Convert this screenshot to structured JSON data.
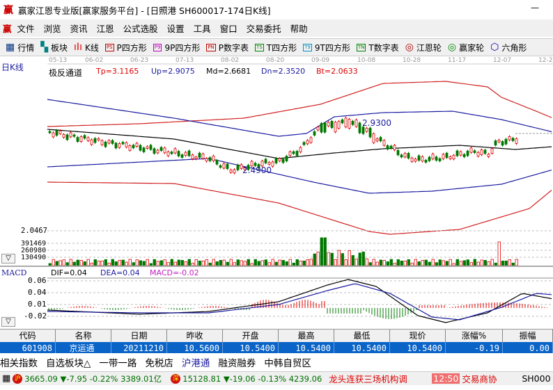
{
  "window": {
    "title": "赢家江恩专业版[赢家服务平台] - [日照港  SH600017-174日K线]",
    "logo": "赢",
    "minimize": "—"
  },
  "menu": [
    "文件",
    "浏览",
    "资讯",
    "江恩",
    "公式选股",
    "设置",
    "工具",
    "窗口",
    "交易委托",
    "帮助"
  ],
  "toolbar": [
    {
      "icon": "grid-icon",
      "label": "行情"
    },
    {
      "icon": "blocks-icon",
      "label": "板块"
    },
    {
      "icon": "candles-icon",
      "label": "K线"
    },
    {
      "icon": "PS",
      "label": "P四方形",
      "color": "#c00000"
    },
    {
      "icon": "P9",
      "label": "9P四方形",
      "color": "#c000c0"
    },
    {
      "icon": "PN",
      "label": "P数字表",
      "color": "#c00000"
    },
    {
      "icon": "TS",
      "label": "T四方形",
      "color": "#008000"
    },
    {
      "icon": "T9",
      "label": "9T四方形",
      "color": "#0090c0"
    },
    {
      "icon": "TN",
      "label": "T数字表",
      "color": "#008000"
    },
    {
      "icon": "wheel-icon",
      "label": "江恩轮"
    },
    {
      "icon": "big-wheel-icon",
      "label": "赢家轮"
    },
    {
      "icon": "hexagon-icon",
      "label": "六角形"
    }
  ],
  "chart": {
    "period_label": "日K线",
    "dates": [
      "05-13",
      "06-02",
      "06-23",
      "07-13",
      "08-02",
      "08-20",
      "09-09",
      "10-08",
      "10-28",
      "11-17",
      "12-07",
      "12-2"
    ],
    "indicator": {
      "name": "极反通道",
      "tp": "Tp=3.1165",
      "up": "Up=2.9075",
      "md": "Md=2.6681",
      "dn": "Dn=2.3520",
      "bt": "Bt=2.0633"
    },
    "high_marker": "2.9300",
    "low_marker": "2.4900",
    "colors": {
      "up": "#e00000",
      "down": "#007800",
      "band_outer": "#d02020",
      "band_inner": "#1a1aa0",
      "mid": "#000000"
    },
    "volume": {
      "scale_top": "2.0467",
      "ticks": [
        "391469",
        "260980",
        "130490"
      ]
    },
    "macd": {
      "title": "MACD",
      "dif": "DIF=0.04",
      "dea": "DEA=0.04",
      "macd": "MACD=-0.02",
      "ticks": [
        "0.06",
        "0.04",
        "0.01",
        "-0.02"
      ]
    }
  },
  "table": {
    "headers": [
      "代码",
      "名称",
      "日期",
      "昨收",
      "开盘",
      "最高",
      "最低",
      "现价",
      "涨幅%",
      "振幅"
    ],
    "row": [
      "601908",
      "京运通",
      "20211210",
      "10.5600",
      "10.5400",
      "10.5400",
      "10.5400",
      "10.5400",
      "-0.19",
      "0.00"
    ]
  },
  "tabs": [
    "相关指数",
    "自选板块△",
    "一带一路",
    "免税店",
    "沪港通",
    "融资融券",
    "中韩自贸区"
  ],
  "status": {
    "sh_badge": "沪",
    "sh": "3665.09 ▼-7.95 -0.22% 3389.01亿",
    "sz_badge": "深",
    "sz": "15128.81 ▼-19.06 -0.13% 4239.06",
    "news": "龙头连获三场机构调",
    "time": "12:50",
    "news2": "交易商协",
    "code": "SH000"
  }
}
